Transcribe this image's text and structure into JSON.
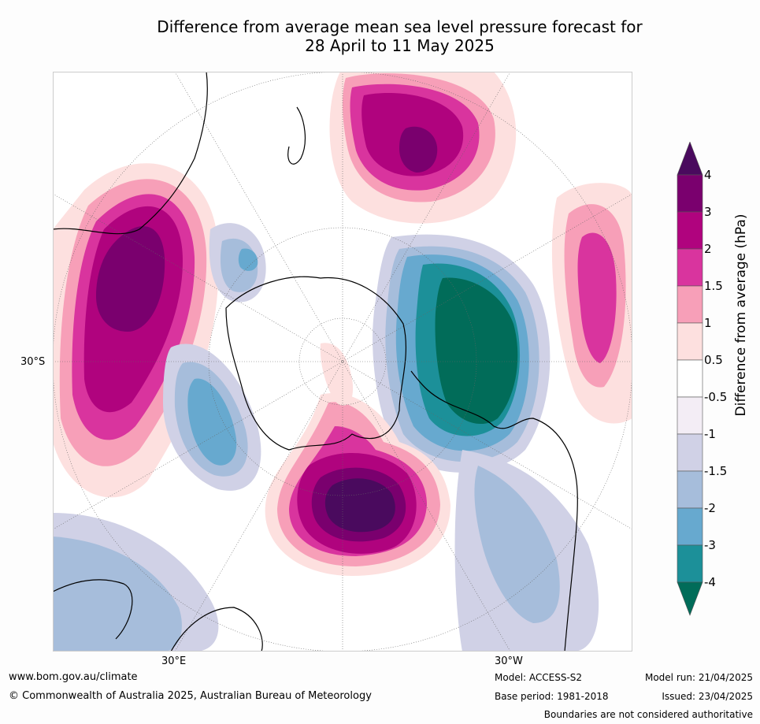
{
  "title_line1": "Difference from average mean sea level pressure forecast for",
  "title_line2": "28 April to 11 May 2025",
  "map": {
    "lat_label": "30°S",
    "lon_label_left": "30°E",
    "lon_label_right": "30°W",
    "colors": {
      "ocean": "#ffffff",
      "grid": "#666666",
      "coast": "#000000"
    }
  },
  "colorbar": {
    "title": "Difference from average (hPa)",
    "ticks": [
      "4",
      "3",
      "2",
      "1.5",
      "1",
      "0.5",
      "-0.5",
      "-1",
      "-1.5",
      "-2",
      "-3",
      "-4"
    ],
    "bins": [
      {
        "range": "above 4",
        "color": "#4a0a5e"
      },
      {
        "range": "3 to 4",
        "color": "#7a006e"
      },
      {
        "range": "2 to 3",
        "color": "#b0037e"
      },
      {
        "range": "1.5 to 2",
        "color": "#d9349e"
      },
      {
        "range": "1 to 1.5",
        "color": "#f79fb8"
      },
      {
        "range": "0.5 to 1",
        "color": "#fde0df"
      },
      {
        "range": "-0.5 to 0.5",
        "color": "#ffffff"
      },
      {
        "range": "-1 to -0.5",
        "color": "#f3edf5"
      },
      {
        "range": "-1.5 to -1",
        "color": "#d0d1e6"
      },
      {
        "range": "-2 to -1.5",
        "color": "#a6bddb"
      },
      {
        "range": "-3 to -2",
        "color": "#67a9cf"
      },
      {
        "range": "-4 to -3",
        "color": "#1c9099"
      },
      {
        "range": "below -4",
        "color": "#016c59"
      }
    ]
  },
  "footer": {
    "url": "www.bom.gov.au/climate",
    "copyright": "© Commonwealth of Australia 2025, Australian Bureau of Meteorology",
    "model": "Model: ACCESS-S2",
    "base_period": "Base period: 1981-2018",
    "model_run": "Model run: 21/04/2025",
    "issued": "Issued: 23/04/2025",
    "disclaimer": "Boundaries are not considered authoritative"
  }
}
